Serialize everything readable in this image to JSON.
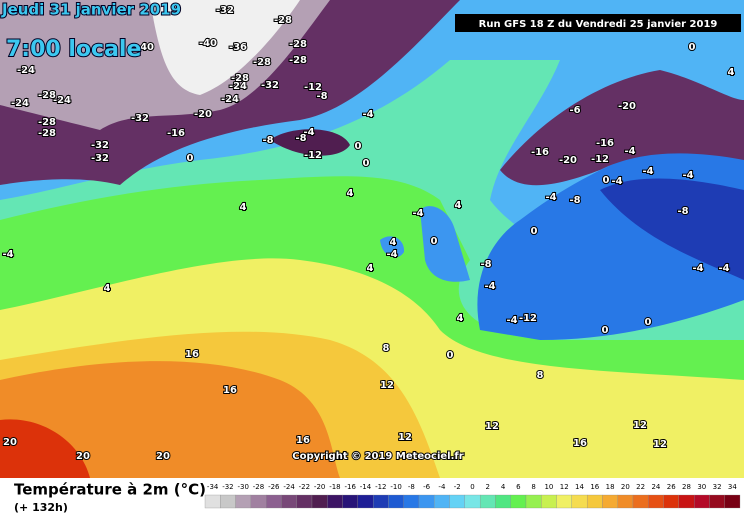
{
  "header": {
    "date": "Jeudi 31 janvier 2019",
    "time": "7:00 locale",
    "run": "Run GFS 18 Z du Vendredi 25 janvier 2019"
  },
  "copyright": "Copyright © 2019 Meteociel.fr",
  "footer": {
    "title": "Température à 2m (°C)",
    "lead": "(+ 132h)"
  },
  "map_labels": [
    -24,
    -24,
    -28,
    -24,
    -28,
    -28,
    -32,
    -32,
    -32,
    -16,
    -20,
    -24,
    -24,
    -28,
    -32,
    -28,
    -28,
    -12,
    -8,
    -4,
    -8,
    -4,
    -8,
    -12,
    0,
    0,
    0,
    4,
    4,
    4,
    -4,
    4,
    -4,
    0,
    4,
    4,
    16,
    16,
    20,
    20,
    20,
    16,
    12,
    8,
    4,
    0,
    -4,
    -8,
    0,
    -4,
    -8,
    -16,
    -20,
    -16,
    -12,
    -20,
    -6,
    -4,
    -4,
    -4,
    -8,
    -4,
    -4,
    0,
    -4,
    4,
    0,
    -4,
    -12,
    0,
    0,
    12,
    12,
    16,
    12,
    -4,
    8,
    12,
    -40,
    -40,
    -36,
    -28,
    -28,
    -32
  ],
  "legend": {
    "values": [
      -34,
      -32,
      -30,
      -28,
      -26,
      -24,
      -22,
      -20,
      -18,
      -16,
      -14,
      -12,
      -10,
      -8,
      -6,
      -4,
      -2,
      0,
      2,
      4,
      6,
      8,
      10,
      12,
      14,
      16,
      18,
      20,
      22,
      24,
      26,
      28,
      30,
      32,
      34
    ],
    "colors": [
      "#e0e0e0",
      "#c8c8c8",
      "#b4a0b4",
      "#a080a0",
      "#8c6090",
      "#784878",
      "#643064",
      "#501e50",
      "#3c1464",
      "#281478",
      "#1e1e96",
      "#1e3cb4",
      "#1e5ad2",
      "#2878e6",
      "#3c96f0",
      "#50b4f5",
      "#64d2f5",
      "#78e6e6",
      "#64e6b4",
      "#50e682",
      "#64f050",
      "#96f050",
      "#c8f050",
      "#f0f064",
      "#f5dc50",
      "#f5c83c",
      "#f5aa32",
      "#f08c28",
      "#eb6e1e",
      "#e65014",
      "#dc320a",
      "#c81414",
      "#b40a28",
      "#960a1e",
      "#780014"
    ]
  }
}
